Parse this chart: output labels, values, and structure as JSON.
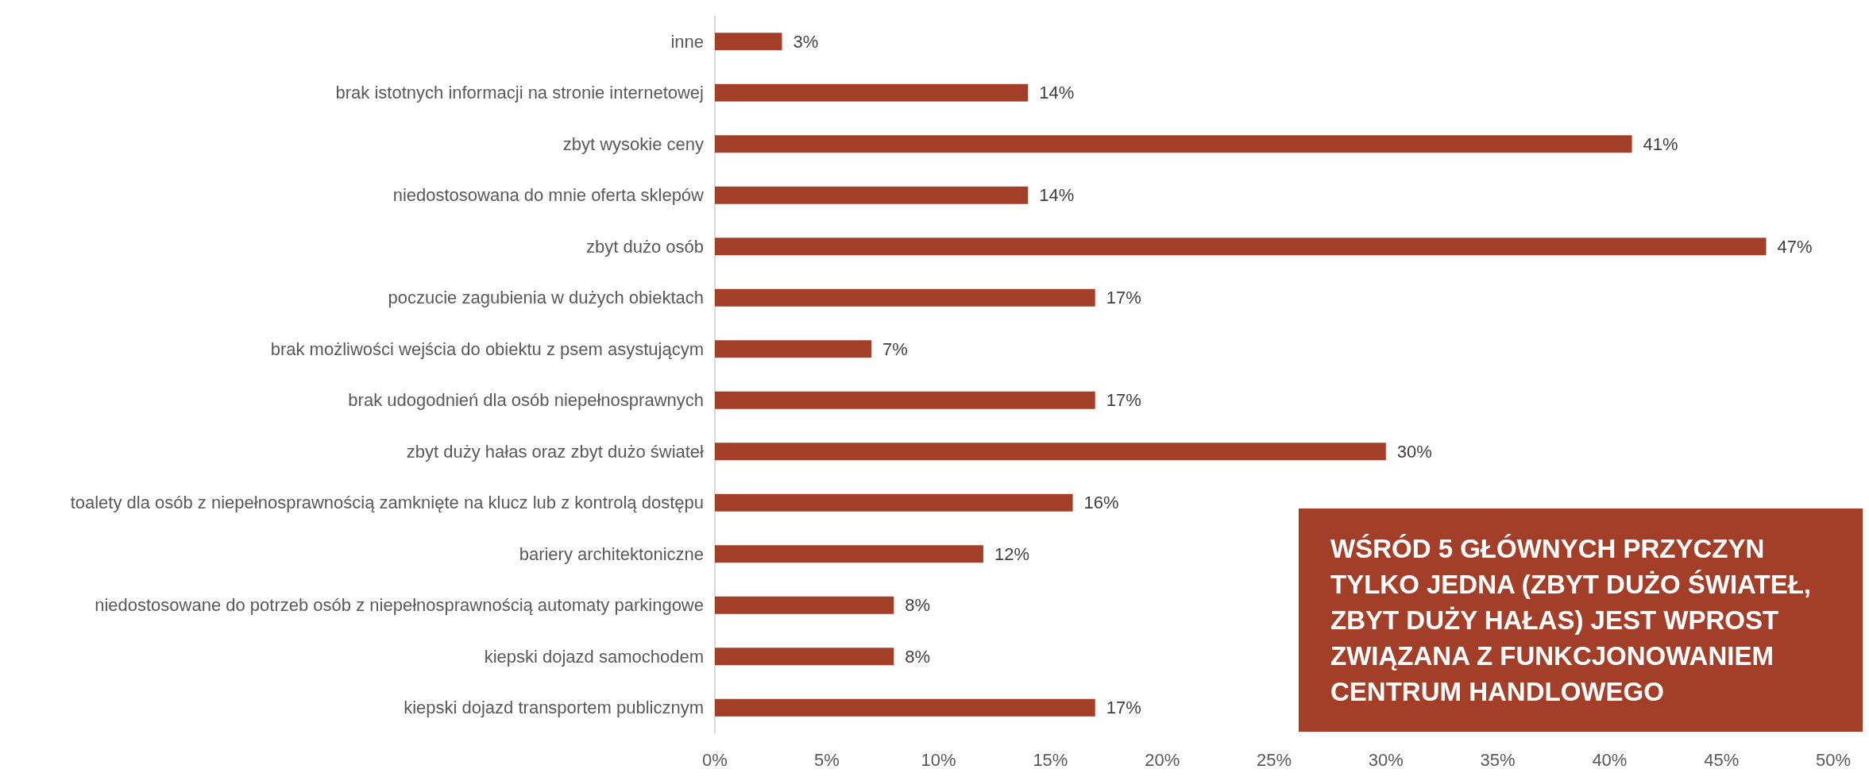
{
  "chart_data": {
    "type": "bar",
    "orientation": "horizontal",
    "categories": [
      "inne",
      "brak istotnych informacji na stronie internetowej",
      "zbyt wysokie ceny",
      "niedostosowana do mnie oferta sklepów",
      "zbyt dużo osób",
      "poczucie zagubienia w dużych obiektach",
      "brak możliwości wejścia do obiektu z psem asystującym",
      "brak udogodnień dla osób niepełnosprawnych",
      "zbyt duży hałas oraz zbyt dużo świateł",
      "toalety dla osób z niepełnosprawnością zamknięte na klucz lub z kontrolą dostępu",
      "bariery architektoniczne",
      "niedostosowane do potrzeb osób z niepełnosprawnością automaty parkingowe",
      "kiepski dojazd samochodem",
      "kiepski dojazd transportem publicznym"
    ],
    "values": [
      3,
      14,
      41,
      14,
      47,
      17,
      7,
      17,
      30,
      16,
      12,
      8,
      8,
      17
    ],
    "value_labels": [
      "3%",
      "14%",
      "41%",
      "14%",
      "47%",
      "17%",
      "7%",
      "17%",
      "30%",
      "16%",
      "12%",
      "8%",
      "8%",
      "17%"
    ],
    "color": "#a33f29",
    "xlim": [
      0,
      50
    ],
    "xticks": [
      {
        "value": 0,
        "label": "0%"
      },
      {
        "value": 5,
        "label": "5%"
      },
      {
        "value": 10,
        "label": "10%"
      },
      {
        "value": 15,
        "label": "15%"
      },
      {
        "value": 20,
        "label": "20%"
      },
      {
        "value": 25,
        "label": "25%"
      },
      {
        "value": 30,
        "label": "30%"
      },
      {
        "value": 35,
        "label": "35%"
      },
      {
        "value": 40,
        "label": "40%"
      },
      {
        "value": 45,
        "label": "45%"
      },
      {
        "value": 50,
        "label": "50%"
      }
    ],
    "grid": false,
    "annotations": [
      "WŚRÓD 5 GŁÓWNYCH PRZYCZYN TYLKO JEDNA (ZBYT DUŻO ŚWIATEŁ, ZBYT DUŻY HAŁAS) JEST WPROST ZWIĄZANA Z FUNKCJONOWANIEM CENTRUM HANDLOWEGO"
    ]
  }
}
